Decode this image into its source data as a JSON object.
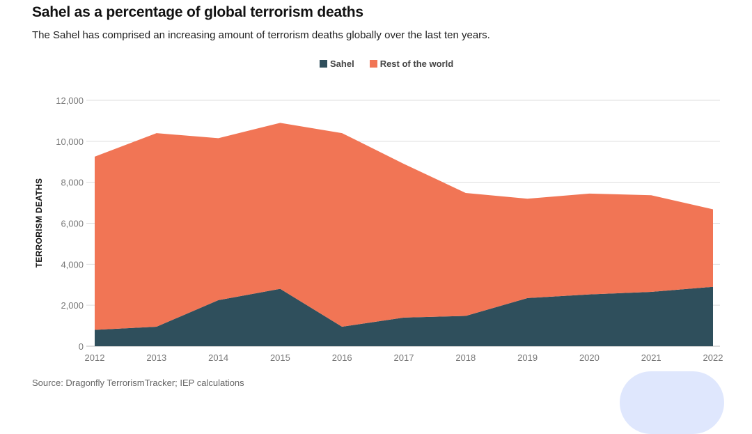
{
  "title": "Sahel as a percentage of global terrorism deaths",
  "subtitle": "The Sahel has comprised an increasing amount of terrorism deaths globally over the last ten years.",
  "source": "Source: Dragonfly TerrorismTracker; IEP calculations",
  "legend": [
    {
      "name": "Sahel",
      "color": "#2f4f5c"
    },
    {
      "name": "Rest of the world",
      "color": "#f17555"
    }
  ],
  "chart_data": {
    "type": "area",
    "stacked": true,
    "x": [
      "2012",
      "2013",
      "2014",
      "2015",
      "2016",
      "2017",
      "2018",
      "2019",
      "2020",
      "2021",
      "2022"
    ],
    "series": [
      {
        "name": "Sahel",
        "color": "#2f4f5c",
        "values": [
          800,
          950,
          2250,
          2800,
          950,
          1400,
          1480,
          2350,
          2530,
          2650,
          2900
        ]
      },
      {
        "name": "Rest of the world",
        "color": "#f17555",
        "values": [
          8450,
          9450,
          7900,
          8100,
          9450,
          7500,
          6000,
          4850,
          4920,
          4720,
          3780
        ]
      }
    ],
    "totals": [
      9250,
      10400,
      10150,
      10900,
      10400,
      8900,
      7480,
      7200,
      7450,
      7370,
      6680
    ],
    "ylabel": "TERRORISM DEATHS",
    "xlabel": "",
    "ylim": [
      0,
      12000
    ],
    "yticks": [
      0,
      2000,
      4000,
      6000,
      8000,
      10000,
      12000
    ],
    "ytick_labels": [
      "0",
      "2,000",
      "4,000",
      "6,000",
      "8,000",
      "10,000",
      "12,000"
    ],
    "grid": true,
    "legend_position": "top-center"
  }
}
